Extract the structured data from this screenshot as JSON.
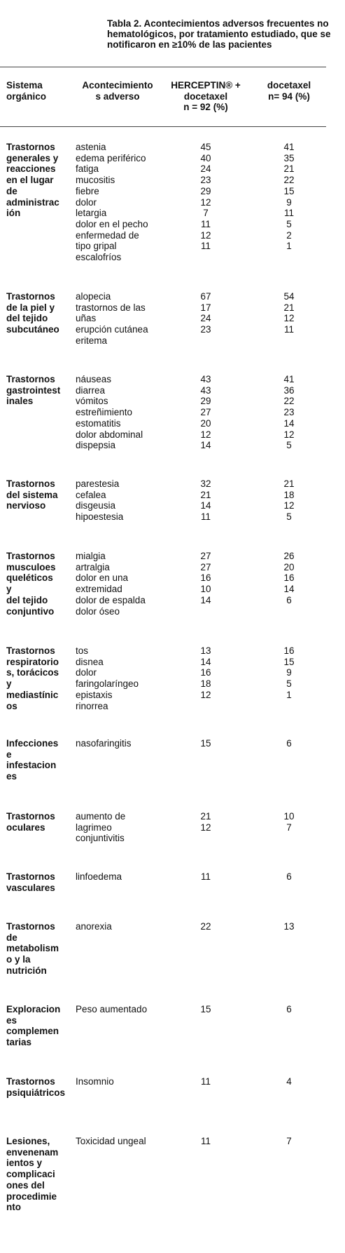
{
  "title": [
    "Tabla 2. Acontecimientos adversos frecuentes no",
    "hematológicos, por tratamiento estudiado, que se",
    "notificaron en ≥10% de las pacientes"
  ],
  "header": [
    [
      "Sistema",
      "orgánico"
    ],
    [
      "Acontecimiento",
      "s adverso"
    ],
    [
      "HERCEPTIN® +",
      "docetaxel",
      "n = 92 (%)"
    ],
    [
      "docetaxel",
      "n= 94 (%)"
    ]
  ],
  "groups": [
    {
      "organ": [
        "Trastornos",
        "generales y",
        "reacciones",
        "en el lugar",
        "de",
        "administrac",
        "ión"
      ],
      "events": [
        "astenia",
        "edema periférico",
        "fatiga",
        "mucositis",
        "fiebre",
        "dolor",
        "letargia",
        "dolor en el pecho",
        "enfermedad de",
        "tipo gripal",
        "escalofríos"
      ],
      "herceptin": [
        45,
        40,
        24,
        23,
        29,
        12,
        7,
        11,
        12,
        11
      ],
      "docetaxel": [
        41,
        35,
        21,
        22,
        15,
        9,
        11,
        5,
        2,
        1
      ]
    },
    {
      "organ": [
        "Trastornos",
        "de la piel y",
        "del tejido",
        "subcutáneo"
      ],
      "events": [
        "alopecia",
        "trastornos de las",
        "uñas",
        "erupción cutánea",
        "eritema"
      ],
      "herceptin": [
        67,
        17,
        24,
        23
      ],
      "docetaxel": [
        54,
        21,
        12,
        11
      ]
    },
    {
      "organ": [
        "Trastornos",
        "gastrointest",
        "inales"
      ],
      "events": [
        "náuseas",
        "diarrea",
        "vómitos",
        "estreñimiento",
        "estomatitis",
        "dolor abdominal",
        "dispepsia"
      ],
      "herceptin": [
        43,
        43,
        29,
        27,
        20,
        12,
        14
      ],
      "docetaxel": [
        41,
        36,
        22,
        23,
        14,
        12,
        5
      ]
    },
    {
      "organ": [
        "Trastornos",
        "del sistema",
        "nervioso"
      ],
      "events": [
        "parestesia",
        "cefalea",
        "disgeusia",
        "hipoestesia"
      ],
      "herceptin": [
        32,
        21,
        14,
        11
      ],
      "docetaxel": [
        21,
        18,
        12,
        5
      ]
    },
    {
      "organ": [
        "Trastornos",
        "musculoes",
        "queléticos",
        "y",
        "del tejido",
        "conjuntivo"
      ],
      "events": [
        "mialgia",
        "artralgia",
        "dolor en una",
        "extremidad",
        "dolor de espalda",
        "dolor óseo"
      ],
      "herceptin": [
        27,
        27,
        16,
        10,
        14
      ],
      "docetaxel": [
        26,
        20,
        16,
        14,
        6
      ]
    },
    {
      "organ": [
        "Trastornos",
        "respiratorio",
        "s, torácicos",
        "y",
        "mediastínic",
        "os"
      ],
      "events": [
        "tos",
        "disnea",
        "dolor",
        "faringolaríngeo",
        "epistaxis",
        "rinorrea"
      ],
      "herceptin": [
        13,
        14,
        16,
        18,
        12
      ],
      "docetaxel": [
        16,
        15,
        9,
        5,
        1
      ]
    },
    {
      "organ": [
        "Infecciones",
        "e",
        "infestacion",
        "es"
      ],
      "events": [
        "nasofaringitis"
      ],
      "herceptin": [
        15
      ],
      "docetaxel": [
        6
      ]
    },
    {
      "organ": [
        "Trastornos",
        "oculares"
      ],
      "events": [
        "aumento de",
        "lagrimeo",
        "conjuntivitis"
      ],
      "herceptin": [
        21,
        12
      ],
      "docetaxel": [
        10,
        7
      ]
    },
    {
      "organ": [
        "Trastornos",
        "vasculares"
      ],
      "events": [
        "linfoedema"
      ],
      "herceptin": [
        11
      ],
      "docetaxel": [
        6
      ]
    },
    {
      "organ": [
        "Trastornos",
        "de",
        "metabolism",
        "o y la",
        "nutrición"
      ],
      "events": [
        "anorexia"
      ],
      "herceptin": [
        22
      ],
      "docetaxel": [
        13
      ]
    },
    {
      "organ": [
        "Exploracion",
        "es",
        "complemen",
        "tarias"
      ],
      "events": [
        "Peso aumentado"
      ],
      "herceptin": [
        15
      ],
      "docetaxel": [
        6
      ]
    },
    {
      "organ": [
        "Trastornos",
        "psiquiátricos"
      ],
      "events": [
        "Insomnio"
      ],
      "herceptin": [
        11
      ],
      "docetaxel": [
        4
      ]
    },
    {
      "organ": [
        "Lesiones,",
        "envenenam",
        "ientos y",
        "complicaci",
        "ones del",
        "procedimie",
        "nto"
      ],
      "events": [
        "Toxicidad ungeal"
      ],
      "herceptin": [
        11
      ],
      "docetaxel": [
        7
      ]
    }
  ]
}
